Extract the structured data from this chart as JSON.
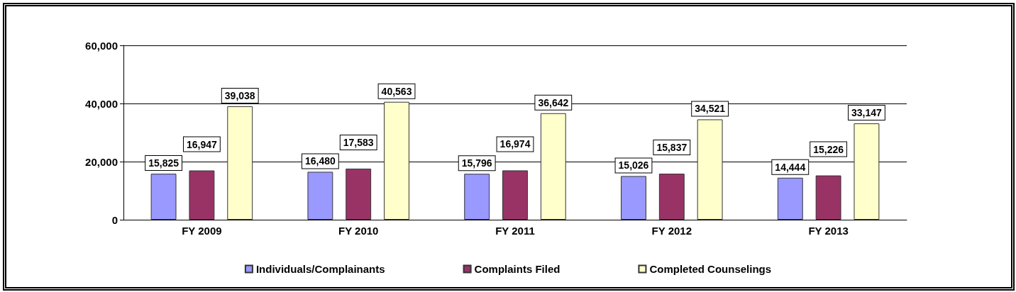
{
  "chart_data": {
    "type": "bar",
    "categories": [
      "FY 2009",
      "FY 2010",
      "FY 2011",
      "FY 2012",
      "FY 2013"
    ],
    "series": [
      {
        "name": "Individuals/Complainants",
        "color": "#9999ff",
        "values": [
          15825,
          16480,
          15796,
          15026,
          14444
        ],
        "value_labels": [
          "15,825",
          "16,480",
          "15,796",
          "15,026",
          "14,444"
        ]
      },
      {
        "name": "Complaints Filed",
        "color": "#993366",
        "values": [
          16947,
          17583,
          16974,
          15837,
          15226
        ],
        "value_labels": [
          "16,947",
          "17,583",
          "16,974",
          "15,837",
          "15,226"
        ]
      },
      {
        "name": "Completed Counselings",
        "color": "#ffffcc",
        "values": [
          39038,
          40563,
          36642,
          34521,
          33147
        ],
        "value_labels": [
          "39,038",
          "40,563",
          "36,642",
          "34,521",
          "33,147"
        ]
      }
    ],
    "ylim": [
      0,
      60000
    ],
    "yticks": [
      0,
      {
        "value": 20000,
        "label": "20,000"
      },
      {
        "value": 40000,
        "label": "40,000"
      },
      {
        "value": 60000,
        "label": "60,000"
      }
    ],
    "grid": "y",
    "legend": "bottom"
  }
}
